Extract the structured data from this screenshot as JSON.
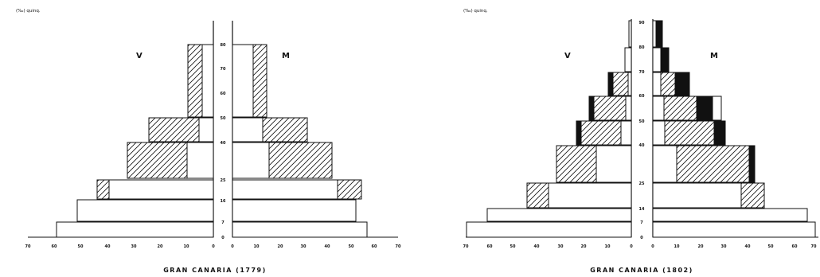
{
  "chart_data": [
    {
      "type": "bar",
      "title": "GRAN  CANARIA   (1779)",
      "unit_label": "(‰)   quinq.",
      "left_label": "V",
      "right_label": "M",
      "x_ticks": [
        "70",
        "60",
        "50",
        "40",
        "30",
        "20",
        "10",
        "0",
        "0",
        "10",
        "20",
        "30",
        "40",
        "50",
        "60",
        "70"
      ],
      "y_ticks": [
        "0",
        "7",
        "16",
        "25",
        "40",
        "50",
        "60",
        "70",
        "80"
      ],
      "categories": [
        "0",
        "7",
        "16",
        "25",
        "40",
        "50",
        "80"
      ],
      "series": [
        {
          "name": "V",
          "values": [
            63,
            54,
            43,
            32,
            25,
            8,
            7
          ]
        },
        {
          "name": "M",
          "values": [
            56,
            51,
            54,
            41,
            30,
            13,
            14
          ]
        }
      ]
    },
    {
      "type": "bar",
      "title": "GRAN  CANARIA   (1802)",
      "unit_label": "(‰)   quinq.",
      "left_label": "V",
      "right_label": "M",
      "x_ticks": [
        "70",
        "60",
        "50",
        "40",
        "30",
        "20",
        "10",
        "0",
        "0",
        "10",
        "20",
        "30",
        "40",
        "50",
        "60",
        "70"
      ],
      "y_ticks": [
        "0",
        "7",
        "14",
        "25",
        "40",
        "50",
        "60",
        "70",
        "80",
        "90"
      ],
      "categories": [
        "0",
        "7",
        "14",
        "25",
        "40",
        "50",
        "60",
        "70",
        "80",
        "90"
      ],
      "series": [
        {
          "name": "V",
          "values": [
            66,
            58,
            42,
            30,
            20,
            15,
            13,
            8,
            3,
            1
          ]
        },
        {
          "name": "M",
          "values": [
            65,
            63,
            45,
            41,
            28,
            26,
            14,
            6,
            4,
            3
          ]
        }
      ]
    }
  ]
}
